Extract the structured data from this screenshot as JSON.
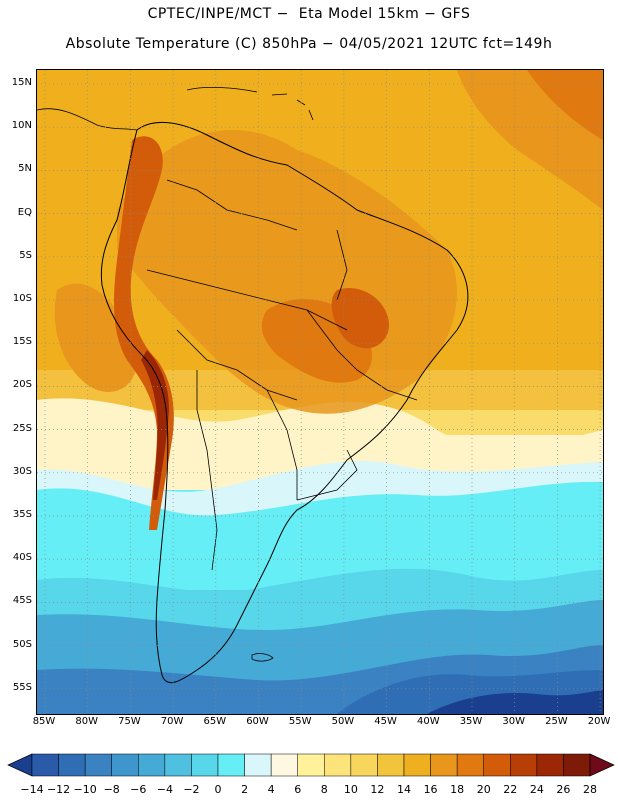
{
  "header": {
    "line1": "CPTEC/INPE/MCT −  Eta Model 15km − GFS",
    "line2": "Absolute Temperature (C) 850hPa − 04/05/2021 12UTC fct=149h"
  },
  "map": {
    "lat_labels": [
      "15N",
      "10N",
      "5N",
      "EQ",
      "5S",
      "10S",
      "15S",
      "20S",
      "25S",
      "30S",
      "35S",
      "40S",
      "45S",
      "50S",
      "55S"
    ],
    "lon_labels": [
      "85W",
      "80W",
      "75W",
      "70W",
      "65W",
      "60W",
      "55W",
      "50W",
      "45W",
      "40W",
      "35W",
      "30W",
      "25W",
      "20W"
    ],
    "gridlines": "dotted"
  },
  "colorbar": {
    "labels": [
      "−14",
      "−12",
      "−10",
      "−8",
      "−6",
      "−4",
      "−2",
      "0",
      "2",
      "4",
      "6",
      "8",
      "10",
      "12",
      "14",
      "16",
      "18",
      "20",
      "22",
      "24",
      "26",
      "28"
    ],
    "colors": [
      "#1a3f8f",
      "#2a5aa8",
      "#2f6db5",
      "#3a82c2",
      "#3f96cc",
      "#45aad6",
      "#4fc0e0",
      "#58d6ea",
      "#66eef6",
      "#d9f6fa",
      "#fff8e1",
      "#fff29a",
      "#fde47a",
      "#f8d65c",
      "#f2c43c",
      "#eeb020",
      "#e8961c",
      "#e07a10",
      "#d25c0a",
      "#b83e08",
      "#9c2706",
      "#7e1a08",
      "#6e0a1a"
    ]
  }
}
